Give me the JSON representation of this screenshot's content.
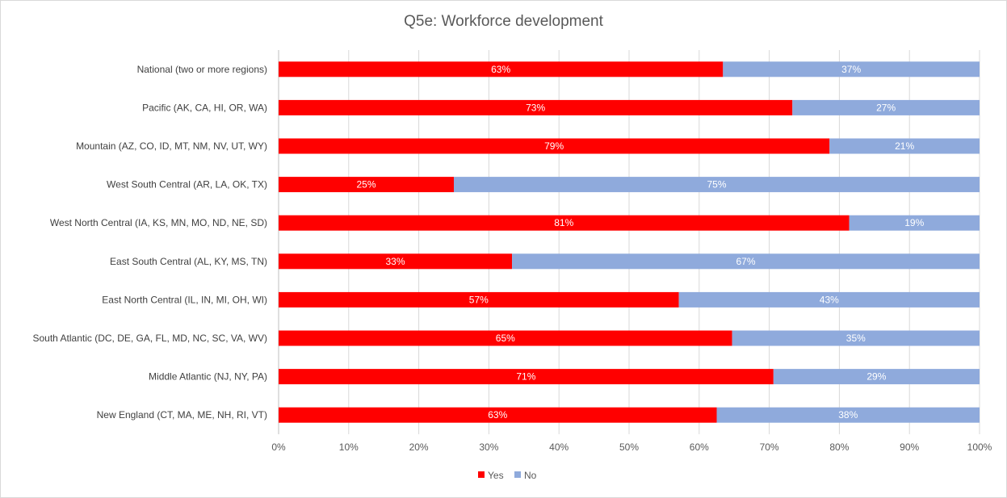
{
  "chart_data": {
    "type": "bar",
    "orientation": "horizontal",
    "stacked": "percent",
    "title": "Q5e: Workforce development",
    "categories": [
      "National (two or more regions)",
      "Pacific (AK, CA, HI, OR, WA)",
      "Mountain (AZ, CO, ID, MT, NM, NV, UT, WY)",
      "West South Central (AR, LA, OK, TX)",
      "West North Central (IA, KS, MN, MO, ND, NE, SD)",
      "East South Central (AL, KY, MS, TN)",
      "East North Central (IL, IN, MI, OH, WI)",
      "South Atlantic (DC, DE, GA, FL, MD, NC, SC, VA, WV)",
      "Middle Atlantic (NJ, NY, PA)",
      "New England (CT, MA, ME, NH, RI, VT)"
    ],
    "series": [
      {
        "name": "Yes",
        "color": "#ff0000",
        "values": [
          63.4,
          73.3,
          78.6,
          25.0,
          81.4,
          33.3,
          57.1,
          64.7,
          70.6,
          62.5
        ],
        "labels": [
          "63%",
          "73%",
          "79%",
          "25%",
          "81%",
          "33%",
          "57%",
          "65%",
          "71%",
          "63%"
        ]
      },
      {
        "name": "No",
        "color": "#8faadc",
        "values": [
          36.6,
          26.7,
          21.4,
          75.0,
          18.6,
          66.7,
          42.9,
          35.3,
          29.4,
          37.5
        ],
        "labels": [
          "37%",
          "27%",
          "21%",
          "75%",
          "19%",
          "67%",
          "43%",
          "35%",
          "29%",
          "38%"
        ]
      }
    ],
    "xlim": [
      0,
      100
    ],
    "xticks": [
      "0%",
      "10%",
      "20%",
      "30%",
      "40%",
      "50%",
      "60%",
      "70%",
      "80%",
      "90%",
      "100%"
    ],
    "grid": true,
    "legend_position": "bottom"
  }
}
